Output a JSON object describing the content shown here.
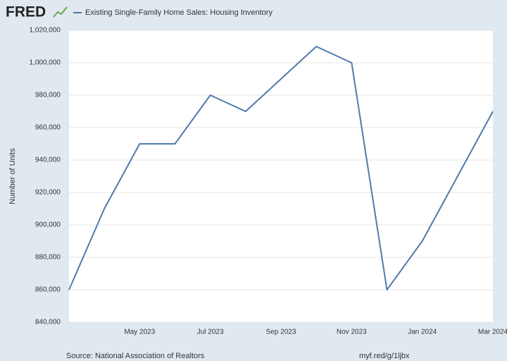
{
  "chart_data": {
    "type": "line",
    "logo": "FRED",
    "legend_label": "Existing Single-Family Home Sales: Housing Inventory",
    "y_label": "Number of Units",
    "source": "Source: National Association of Realtors",
    "link": "myf.red/g/1ljbx",
    "categories": [
      null,
      null,
      "May 2023",
      null,
      "Jul 2023",
      null,
      "Sep 2023",
      null,
      "Nov 2023",
      null,
      "Jan 2024",
      null,
      "Mar 2024"
    ],
    "values": [
      860000,
      910000,
      950000,
      950000,
      980000,
      970000,
      990000,
      1010000,
      1000000,
      860000,
      890000,
      930000,
      970000
    ],
    "color": "#4e7bab",
    "ylim": [
      840000,
      1020000
    ],
    "yticks": [
      {
        "value": 840000,
        "label": "840,000"
      },
      {
        "value": 860000,
        "label": "860,000"
      },
      {
        "value": 880000,
        "label": "880,000"
      },
      {
        "value": 900000,
        "label": "900,000"
      },
      {
        "value": 920000,
        "label": "920,000"
      },
      {
        "value": 940000,
        "label": "940,000"
      },
      {
        "value": 960000,
        "label": "960,000"
      },
      {
        "value": 980000,
        "label": "980,000"
      },
      {
        "value": 1000000,
        "label": "1,000,000"
      },
      {
        "value": 1020000,
        "label": "1,020,000"
      }
    ],
    "grid": true
  }
}
